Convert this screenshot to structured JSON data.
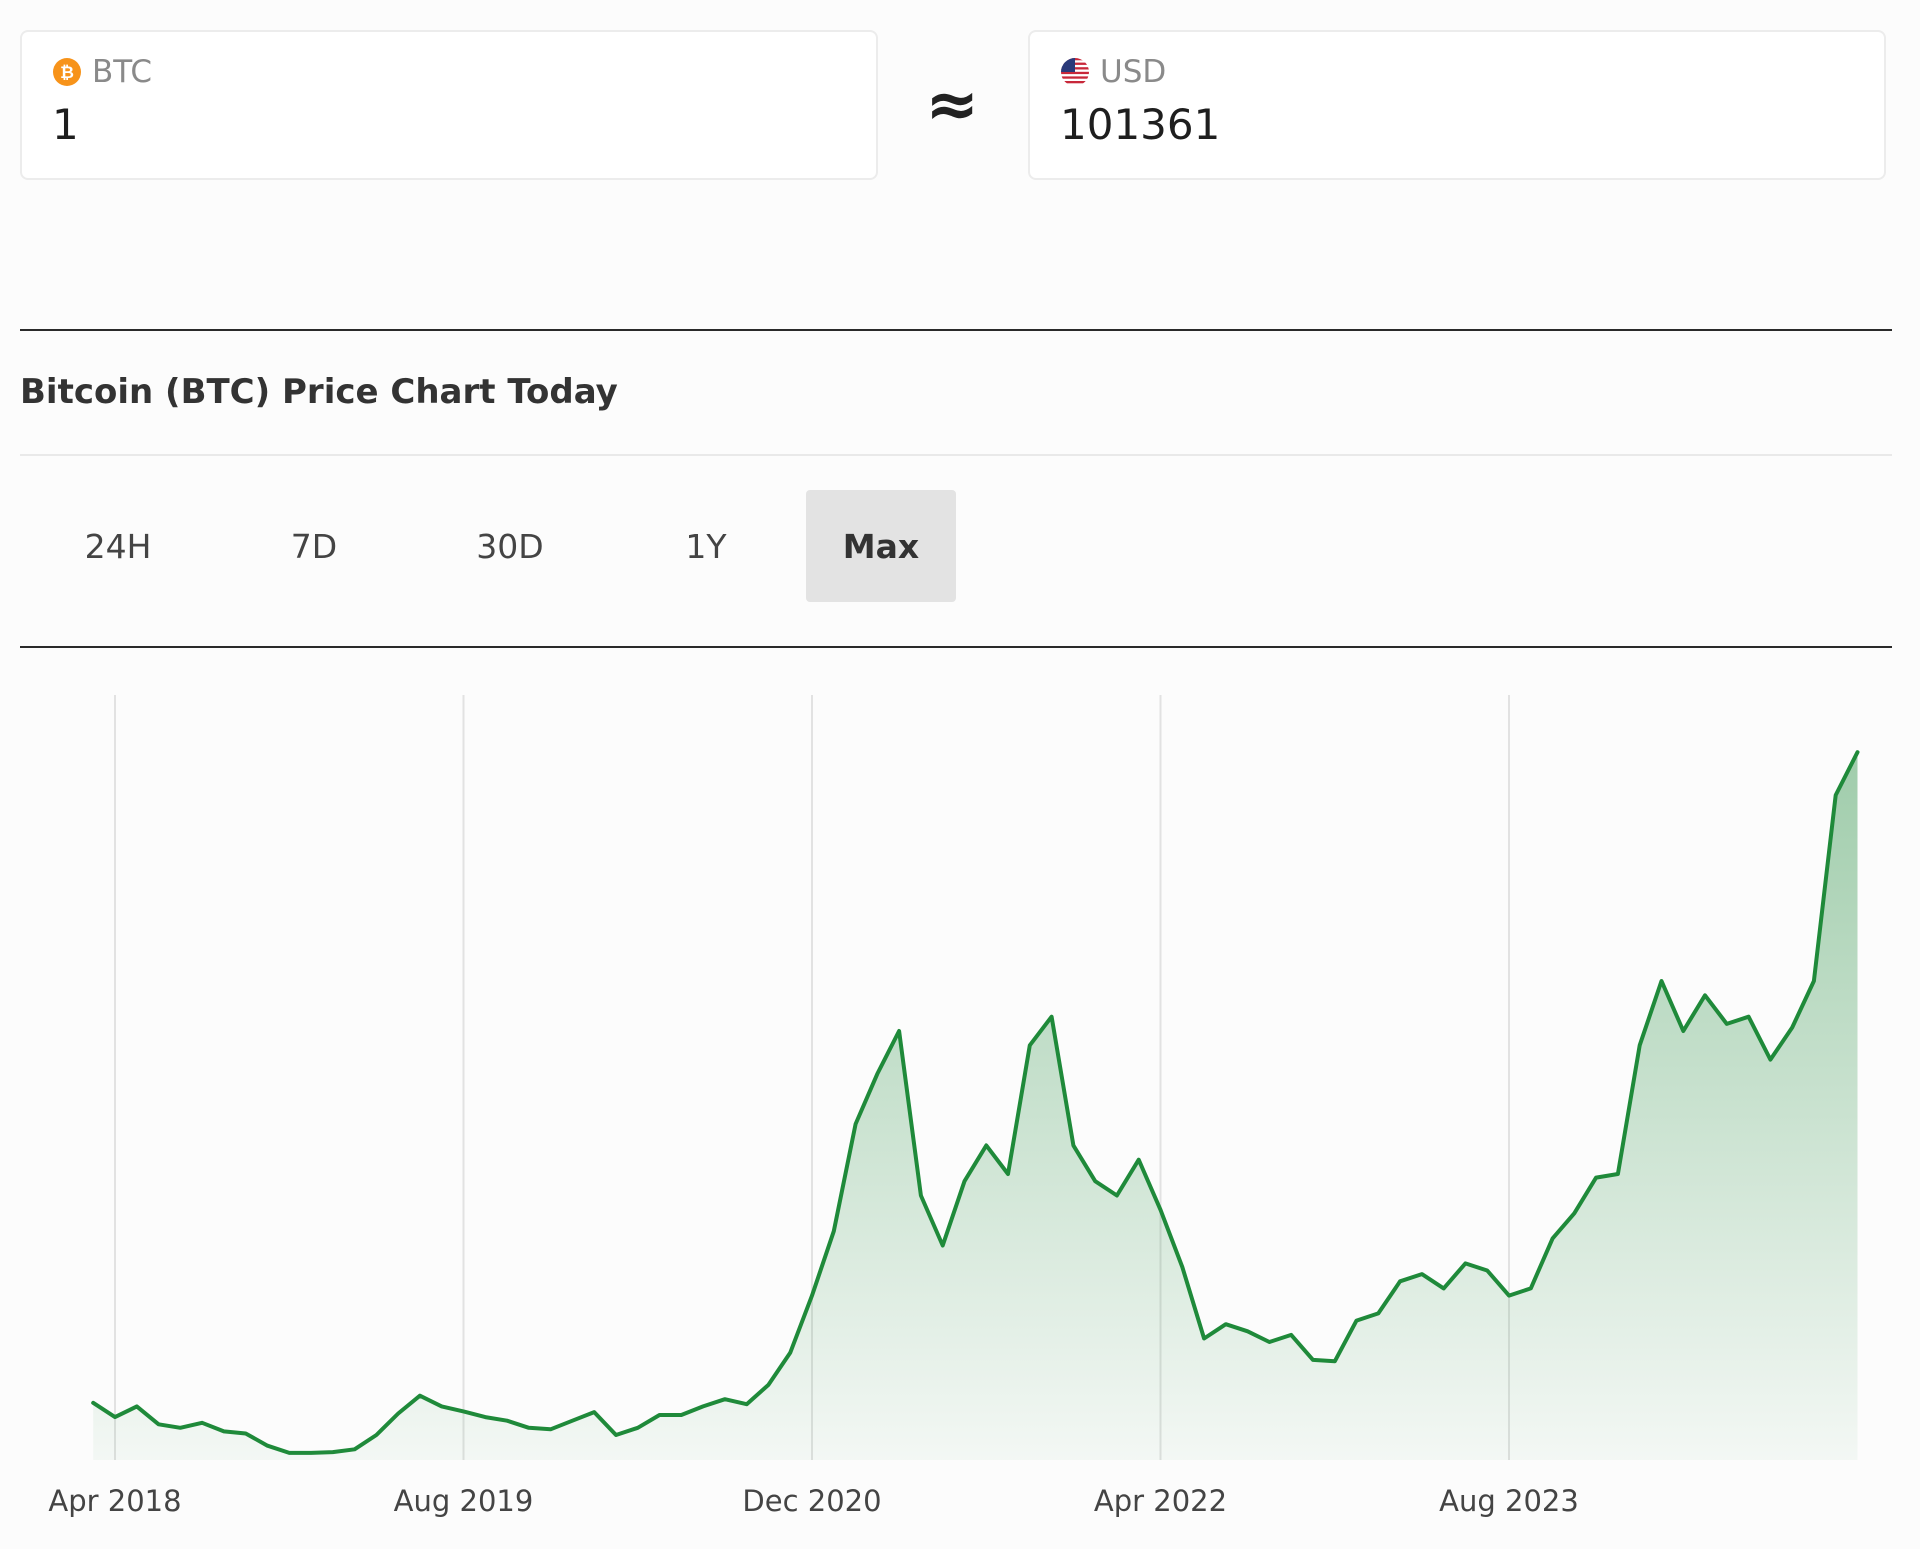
{
  "converter": {
    "from": {
      "currency": "BTC",
      "value": "1",
      "icon": "bitcoin-icon",
      "icon_color": "#f7931a"
    },
    "approx_symbol": "≈",
    "to": {
      "currency": "USD",
      "value": "101361",
      "icon": "us-flag-icon"
    }
  },
  "title": "Bitcoin (BTC) Price Chart Today",
  "tabs": [
    {
      "label": "24H",
      "active": false
    },
    {
      "label": "7D",
      "active": false
    },
    {
      "label": "30D",
      "active": false
    },
    {
      "label": "1Y",
      "active": false
    },
    {
      "label": "Max",
      "active": true
    }
  ],
  "chart_data": {
    "type": "area",
    "title": "",
    "xlabel": "",
    "ylabel": "",
    "x_ticks": [
      "Apr 2018",
      "Aug 2019",
      "Dec 2020",
      "Apr 2022",
      "Aug 2023"
    ],
    "x_range": [
      "2018-04",
      "2024-12"
    ],
    "y_range": [
      3000,
      110000
    ],
    "y_axis_visible": false,
    "grid": "vertical lines at x ticks",
    "line_color": "#1f8a3a",
    "fill_color": "#1f8a3a",
    "series": [
      {
        "x": [
          "2018-03",
          "2018-04",
          "2018-05",
          "2018-06",
          "2018-07",
          "2018-08",
          "2018-09",
          "2018-10",
          "2018-11",
          "2018-12",
          "2019-01",
          "2019-02",
          "2019-03",
          "2019-04",
          "2019-05",
          "2019-06",
          "2019-07",
          "2019-08",
          "2019-09",
          "2019-10",
          "2019-11",
          "2019-12",
          "2020-01",
          "2020-02",
          "2020-03",
          "2020-04",
          "2020-05",
          "2020-06",
          "2020-07",
          "2020-08",
          "2020-09",
          "2020-10",
          "2020-11",
          "2020-12",
          "2021-01",
          "2021-02",
          "2021-03",
          "2021-04",
          "2021-05",
          "2021-06",
          "2021-07",
          "2021-08",
          "2021-09",
          "2021-10",
          "2021-11",
          "2021-12",
          "2022-01",
          "2022-02",
          "2022-03",
          "2022-04",
          "2022-05",
          "2022-06",
          "2022-07",
          "2022-08",
          "2022-09",
          "2022-10",
          "2022-11",
          "2022-12",
          "2023-01",
          "2023-02",
          "2023-03",
          "2023-04",
          "2023-05",
          "2023-06",
          "2023-07",
          "2023-08",
          "2023-09",
          "2023-10",
          "2023-11",
          "2023-12",
          "2024-01",
          "2024-02",
          "2024-03",
          "2024-04",
          "2024-05",
          "2024-06",
          "2024-07",
          "2024-08",
          "2024-09",
          "2024-10",
          "2024-11",
          "2024-12"
        ],
        "y": [
          11000,
          9000,
          10500,
          8000,
          7500,
          8200,
          7000,
          6700,
          5000,
          4000,
          4000,
          4100,
          4500,
          6500,
          9500,
          12000,
          10500,
          9800,
          9000,
          8500,
          7500,
          7300,
          8500,
          9700,
          6500,
          7500,
          9300,
          9300,
          10500,
          11500,
          10800,
          13500,
          18000,
          26000,
          35000,
          50000,
          57000,
          63000,
          40000,
          33000,
          42000,
          47000,
          43000,
          61000,
          65000,
          47000,
          42000,
          40000,
          45000,
          38000,
          30000,
          20000,
          22000,
          21000,
          19500,
          20500,
          17000,
          16800,
          22500,
          23500,
          28000,
          29000,
          27000,
          30500,
          29500,
          26000,
          27000,
          34000,
          37500,
          42500,
          43000,
          61000,
          70000,
          63000,
          68000,
          64000,
          65000,
          59000,
          63500,
          70000,
          96000,
          102000
        ]
      }
    ]
  }
}
